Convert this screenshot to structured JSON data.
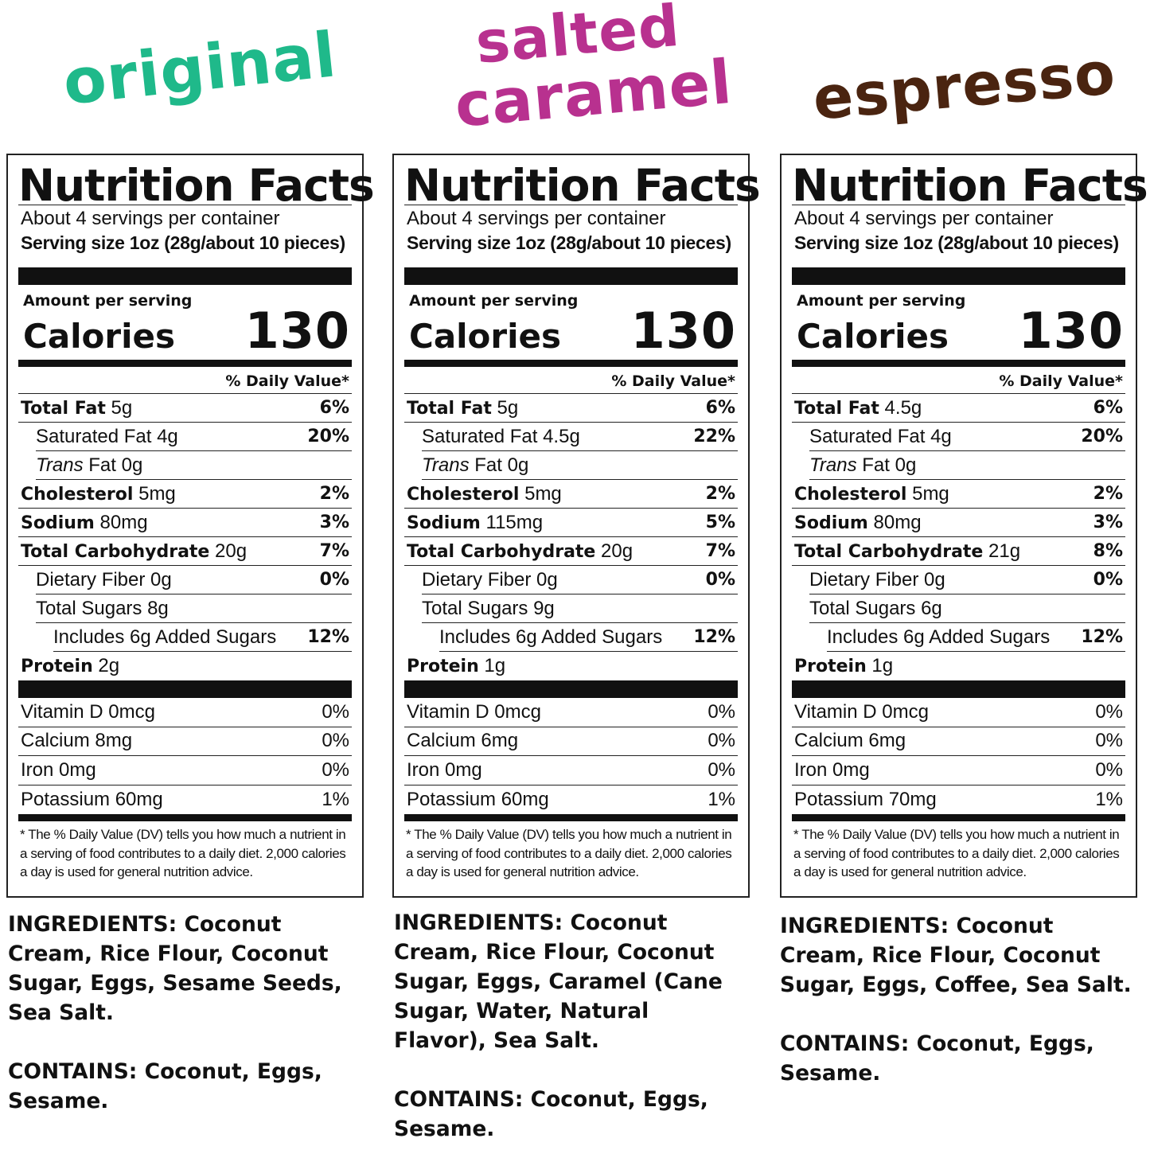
{
  "flavors": [
    {
      "title": "original",
      "color": "#1fb98a",
      "servings": "About 4 servings per container",
      "serving_size": "Serving size 1oz (28g/about 10 pieces)",
      "amount_label": "Amount per serving",
      "calories_label": "Calories",
      "calories": "130",
      "dv_header": "% Daily Value*",
      "nutrients": [
        {
          "name": "Total Fat",
          "amount": "5g",
          "pct": "6%"
        },
        {
          "name": "Saturated Fat 4g",
          "pct": "20%"
        },
        {
          "name_italic": "Trans",
          "name": "Fat 0g",
          "pct": ""
        },
        {
          "name": "Cholesterol",
          "amount": "5mg",
          "pct": "2%"
        },
        {
          "name": "Sodium",
          "amount": "80mg",
          "pct": "3%"
        },
        {
          "name": "Total Carbohydrate",
          "amount": "20g",
          "pct": "7%"
        },
        {
          "name": "Dietary Fiber 0g",
          "pct": "0%"
        },
        {
          "name": "Total Sugars 8g",
          "pct": ""
        },
        {
          "name": "Includes 6g Added Sugars",
          "pct": "12%"
        },
        {
          "name": "Protein",
          "amount": "2g",
          "pct": ""
        }
      ],
      "vitamins": [
        {
          "name": "Vitamin D 0mcg",
          "pct": "0%"
        },
        {
          "name": "Calcium 8mg",
          "pct": "0%"
        },
        {
          "name": "Iron 0mg",
          "pct": "0%"
        },
        {
          "name": "Potassium 60mg",
          "pct": "1%"
        }
      ],
      "footnote": "* The % Daily Value (DV) tells you how much a nutrient in a serving of food contributes to a daily diet. 2,000 calories a day is used for general nutrition advice.",
      "ingredients_label": "INGREDIENTS:",
      "ingredients": "Coconut Cream, Rice Flour, Coconut Sugar, Eggs, Sesame Seeds, Sea Salt.",
      "contains_label": "CONTAINS:",
      "contains": "Coconut, Eggs, Sesame."
    },
    {
      "title_line1": "salted",
      "title_line2": "caramel",
      "color": "#b8318f",
      "servings": "About 4 servings per container",
      "serving_size": "Serving size 1oz (28g/about 10 pieces)",
      "amount_label": "Amount per serving",
      "calories_label": "Calories",
      "calories": "130",
      "dv_header": "% Daily Value*",
      "nutrients": [
        {
          "name": "Total Fat",
          "amount": "5g",
          "pct": "6%"
        },
        {
          "name": "Saturated Fat 4.5g",
          "pct": "22%"
        },
        {
          "name_italic": "Trans",
          "name": "Fat 0g",
          "pct": ""
        },
        {
          "name": "Cholesterol",
          "amount": "5mg",
          "pct": "2%"
        },
        {
          "name": "Sodium",
          "amount": "115mg",
          "pct": "5%"
        },
        {
          "name": "Total Carbohydrate",
          "amount": "20g",
          "pct": "7%"
        },
        {
          "name": "Dietary Fiber 0g",
          "pct": "0%"
        },
        {
          "name": "Total Sugars 9g",
          "pct": ""
        },
        {
          "name": "Includes 6g Added Sugars",
          "pct": "12%"
        },
        {
          "name": "Protein",
          "amount": "1g",
          "pct": ""
        }
      ],
      "vitamins": [
        {
          "name": "Vitamin D 0mcg",
          "pct": "0%"
        },
        {
          "name": "Calcium 6mg",
          "pct": "0%"
        },
        {
          "name": "Iron 0mg",
          "pct": "0%"
        },
        {
          "name": "Potassium 60mg",
          "pct": "1%"
        }
      ],
      "footnote": "* The % Daily Value (DV) tells you how much a nutrient in a serving of food contributes to a daily diet. 2,000 calories a day is used for general nutrition advice.",
      "ingredients_label": "INGREDIENTS:",
      "ingredients": "Coconut Cream, Rice Flour, Coconut Sugar, Eggs, Caramel (Cane Sugar, Water, Natural Flavor), Sea Salt.",
      "contains_label": "CONTAINS:",
      "contains": "Coconut, Eggs, Sesame."
    },
    {
      "title": "espresso",
      "color": "#4a2410",
      "servings": "About 4 servings per container",
      "serving_size": "Serving size 1oz (28g/about 10 pieces)",
      "amount_label": "Amount per serving",
      "calories_label": "Calories",
      "calories": "130",
      "dv_header": "% Daily Value*",
      "nutrients": [
        {
          "name": "Total Fat",
          "amount": "4.5g",
          "pct": "6%"
        },
        {
          "name": "Saturated Fat 4g",
          "pct": "20%"
        },
        {
          "name_italic": "Trans",
          "name": "Fat 0g",
          "pct": ""
        },
        {
          "name": "Cholesterol",
          "amount": "5mg",
          "pct": "2%"
        },
        {
          "name": "Sodium",
          "amount": "80mg",
          "pct": "3%"
        },
        {
          "name": "Total Carbohydrate",
          "amount": "21g",
          "pct": "8%"
        },
        {
          "name": "Dietary Fiber 0g",
          "pct": "0%"
        },
        {
          "name": "Total Sugars 6g",
          "pct": ""
        },
        {
          "name": "Includes 6g Added Sugars",
          "pct": "12%"
        },
        {
          "name": "Protein",
          "amount": "1g",
          "pct": ""
        }
      ],
      "vitamins": [
        {
          "name": "Vitamin D 0mcg",
          "pct": "0%"
        },
        {
          "name": "Calcium 6mg",
          "pct": "0%"
        },
        {
          "name": "Iron 0mg",
          "pct": "0%"
        },
        {
          "name": "Potassium 70mg",
          "pct": "1%"
        }
      ],
      "footnote": "* The % Daily Value (DV) tells you how much a nutrient in a serving of food contributes to a daily diet. 2,000 calories a day is used for general nutrition advice.",
      "ingredients_label": "INGREDIENTS:",
      "ingredients": "Coconut Cream, Rice Flour, Coconut Sugar, Eggs, Coffee, Sea Salt.",
      "contains_label": "CONTAINS:",
      "contains": "Coconut, Eggs, Sesame."
    }
  ],
  "nutrition_facts_title": "Nutrition Facts"
}
